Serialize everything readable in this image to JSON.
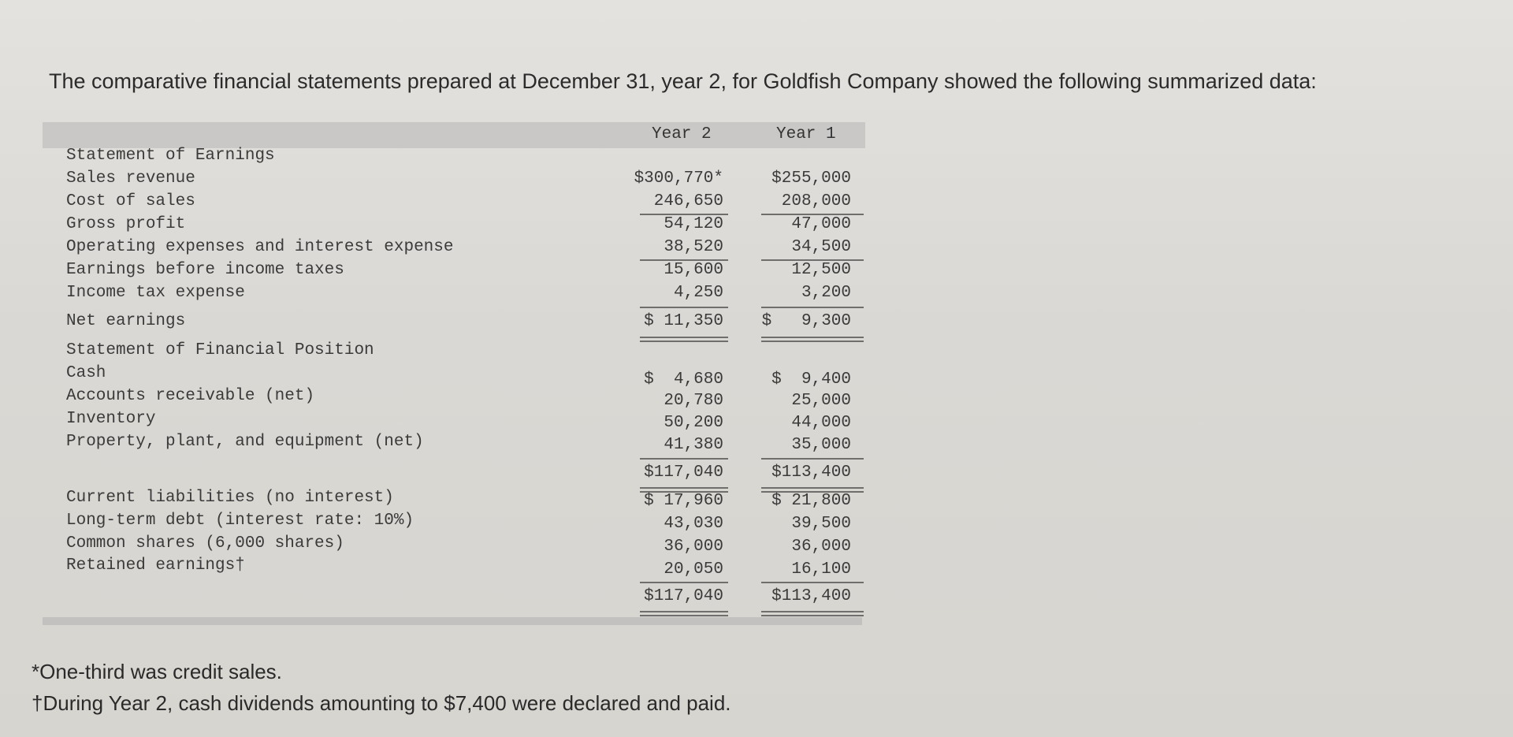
{
  "intro": "The comparative financial statements prepared at December 31, year 2, for Goldfish Company showed the following summarized data:",
  "columns": {
    "year2": "Year 2",
    "year1": "Year 1"
  },
  "earnings": {
    "section_title": "Statement of Earnings",
    "rows": [
      {
        "label": "Sales revenue",
        "y2": "$300,770*",
        "y1": "$255,000"
      },
      {
        "label": "Cost of sales",
        "y2": "246,650",
        "y1": "208,000"
      },
      {
        "label": "Gross profit",
        "y2": "54,120",
        "y1": "47,000"
      },
      {
        "label": "Operating expenses and interest expense",
        "y2": "38,520",
        "y1": "34,500"
      },
      {
        "label": "Earnings before income taxes",
        "y2": "15,600",
        "y1": "12,500"
      },
      {
        "label": "Income tax expense",
        "y2": "4,250",
        "y1": "3,200"
      },
      {
        "label": "Net earnings",
        "y2": "$ 11,350",
        "y1": "$   9,300"
      }
    ]
  },
  "position": {
    "section_title": "Statement of Financial Position",
    "asset_rows": [
      {
        "label": "Cash",
        "y2": "$  4,680",
        "y1": "$  9,400"
      },
      {
        "label": "Accounts receivable (net)",
        "y2": "20,780",
        "y1": "25,000"
      },
      {
        "label": "Inventory",
        "y2": "50,200",
        "y1": "44,000"
      },
      {
        "label": "Property, plant, and equipment (net)",
        "y2": "41,380",
        "y1": "35,000"
      }
    ],
    "asset_total": {
      "y2": "$117,040",
      "y1": "$113,400"
    },
    "liability_rows": [
      {
        "label": "Current liabilities (no interest)",
        "y2": "$ 17,960",
        "y1": "$ 21,800"
      },
      {
        "label": "Long-term debt (interest rate: 10%)",
        "y2": "43,030",
        "y1": "39,500"
      },
      {
        "label": "Common shares (6,000 shares)",
        "y2": "36,000",
        "y1": "36,000"
      },
      {
        "label": "Retained earnings†",
        "y2": "20,050",
        "y1": "16,100"
      }
    ],
    "liability_total": {
      "y2": "$117,040",
      "y1": "$113,400"
    }
  },
  "footnotes": {
    "credit": "*One-third was credit sales.",
    "dividends": "†During Year 2, cash dividends amounting to $7,400 were declared and paid."
  }
}
